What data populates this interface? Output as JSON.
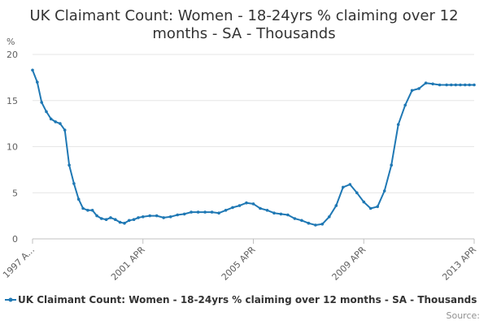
{
  "chart_data": {
    "type": "line",
    "title_line1": "UK Claimant Count: Women - 18-24yrs % claiming over 12",
    "title_line2": "months - SA - Thousands",
    "ylabel": "%",
    "ylim": [
      0,
      20
    ],
    "yticks": [
      "0",
      "5",
      "10",
      "15",
      "20"
    ],
    "xlim": [
      0,
      16
    ],
    "xticks": [
      {
        "label": "1997 A...",
        "x": 0
      },
      {
        "label": "2001 APR",
        "x": 4
      },
      {
        "label": "2005 APR",
        "x": 8
      },
      {
        "label": "2009 APR",
        "x": 12
      },
      {
        "label": "2013 APR",
        "x": 16
      }
    ],
    "grid": true,
    "legend": "bottom",
    "series": [
      {
        "name": "UK Claimant Count: Women - 18-24yrs % claiming over 12 months - SA - Thousands",
        "color": "#1f78b4",
        "x": [
          0,
          0.17,
          0.33,
          0.5,
          0.67,
          0.83,
          1.0,
          1.17,
          1.33,
          1.5,
          1.67,
          1.83,
          2.0,
          2.17,
          2.33,
          2.5,
          2.67,
          2.83,
          3.0,
          3.17,
          3.33,
          3.5,
          3.67,
          3.83,
          4.0,
          4.25,
          4.5,
          4.75,
          5.0,
          5.25,
          5.5,
          5.75,
          6.0,
          6.25,
          6.5,
          6.75,
          7.0,
          7.25,
          7.5,
          7.75,
          8.0,
          8.25,
          8.5,
          8.75,
          9.0,
          9.25,
          9.5,
          9.75,
          10.0,
          10.25,
          10.5,
          10.75,
          11.0,
          11.25,
          11.5,
          11.75,
          12.0,
          12.25,
          12.5,
          12.75,
          13.0,
          13.25,
          13.5,
          13.75,
          14.0,
          14.25,
          14.5,
          14.75,
          15.0,
          15.17,
          15.33,
          15.5,
          15.67,
          15.83,
          16.0
        ],
        "values": [
          18.3,
          17.0,
          14.8,
          13.8,
          13.0,
          12.7,
          12.5,
          11.8,
          8.0,
          6.0,
          4.3,
          3.3,
          3.1,
          3.1,
          2.5,
          2.2,
          2.1,
          2.3,
          2.1,
          1.8,
          1.7,
          2.0,
          2.1,
          2.3,
          2.4,
          2.5,
          2.5,
          2.3,
          2.4,
          2.6,
          2.7,
          2.9,
          2.9,
          2.9,
          2.9,
          2.8,
          3.1,
          3.4,
          3.6,
          3.9,
          3.8,
          3.3,
          3.1,
          2.8,
          2.7,
          2.6,
          2.2,
          2.0,
          1.7,
          1.5,
          1.6,
          2.4,
          3.6,
          5.6,
          5.9,
          5.0,
          4.0,
          3.3,
          3.5,
          5.2,
          8.0,
          12.4,
          14.5,
          16.1,
          16.3,
          16.9,
          16.8,
          16.7,
          16.7,
          16.7,
          16.7,
          16.7,
          16.7,
          16.7,
          16.7
        ]
      }
    ],
    "source_label": "Source:"
  }
}
